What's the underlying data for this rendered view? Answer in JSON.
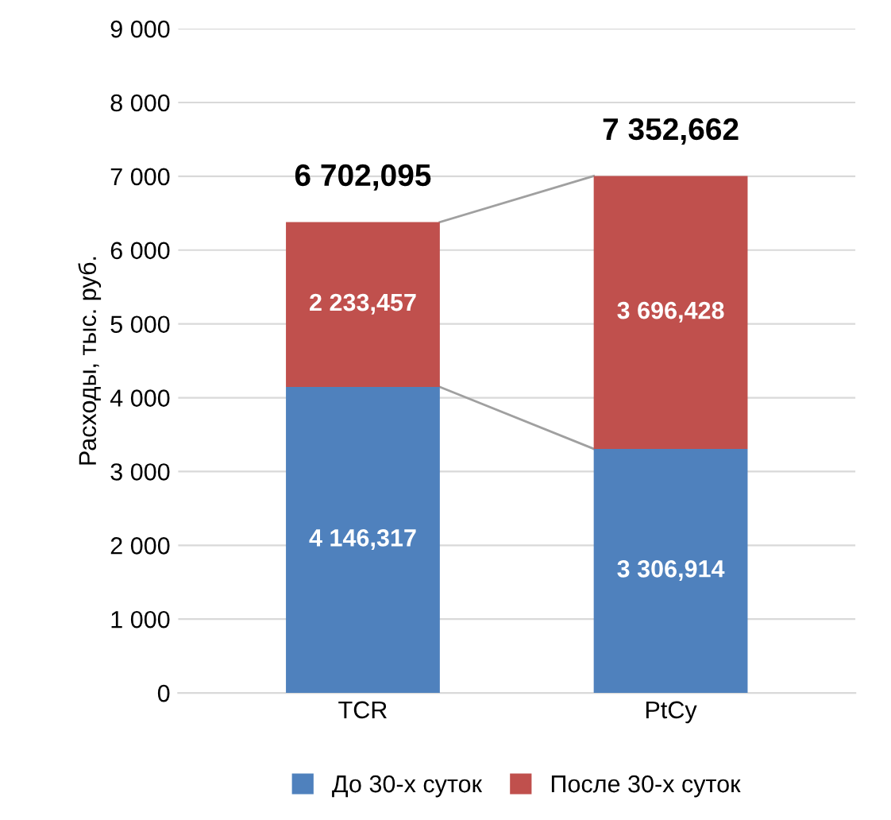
{
  "chart_data": {
    "type": "bar",
    "stacked": true,
    "ylabel": "Расходы, тыс. руб.",
    "categories": [
      "TCR",
      "PtCy"
    ],
    "series": [
      {
        "name": "До 30-х суток",
        "color": "#4f81bd",
        "values": [
          4146.317,
          3306.914
        ],
        "value_labels": [
          "4 146,317",
          "3 306,914"
        ]
      },
      {
        "name": "После 30-х суток",
        "color": "#c0504d",
        "values": [
          2233.457,
          3696.428
        ],
        "value_labels": [
          "2 233,457",
          "3 696,428"
        ]
      }
    ],
    "totals": [
      "6 702,095",
      "7 352,662"
    ],
    "ylim": [
      0,
      9000
    ],
    "yticks": [
      {
        "value": 0,
        "label": "0"
      },
      {
        "value": 1000,
        "label": "1 000"
      },
      {
        "value": 2000,
        "label": "2 000"
      },
      {
        "value": 3000,
        "label": "3 000"
      },
      {
        "value": 4000,
        "label": "4 000"
      },
      {
        "value": 5000,
        "label": "5 000"
      },
      {
        "value": 6000,
        "label": "6 000"
      },
      {
        "value": 7000,
        "label": "7 000"
      },
      {
        "value": 8000,
        "label": "8 000"
      },
      {
        "value": 9000,
        "label": "9 000"
      }
    ],
    "grid": "y",
    "legend": "bottom"
  }
}
